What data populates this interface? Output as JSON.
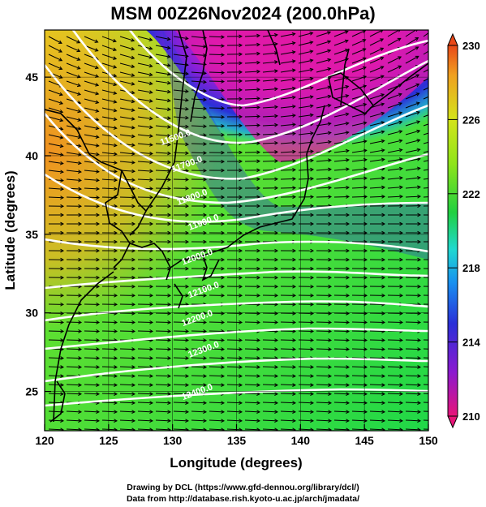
{
  "title": "MSM 00Z26Nov2024 (200.0hPa)",
  "x_axis": {
    "label": "Longitude (degrees)",
    "ticks": [
      "120",
      "125",
      "130",
      "135",
      "140",
      "145",
      "150"
    ],
    "range": [
      120,
      150
    ]
  },
  "y_axis": {
    "label": "Latitude  (degrees)",
    "ticks": [
      "25",
      "30",
      "35",
      "40",
      "45"
    ],
    "range": [
      22.5,
      48
    ]
  },
  "colorbar": {
    "ticks": [
      "230",
      "226",
      "222",
      "218",
      "214",
      "210"
    ],
    "range": [
      210,
      230
    ],
    "colors": [
      "#e81478",
      "#8a1ad0",
      "#2a30d8",
      "#1890f0",
      "#20d8d0",
      "#20d040",
      "#8ee41a",
      "#d4e41a",
      "#f0a020",
      "#e84818"
    ]
  },
  "contour_labels": [
    {
      "text": "11500.0",
      "lon": 130.3,
      "lat": 41.0
    },
    {
      "text": "11700.0",
      "lon": 131.2,
      "lat": 39.3
    },
    {
      "text": "11800.0",
      "lon": 131.6,
      "lat": 37.2
    },
    {
      "text": "11900.0",
      "lon": 132.5,
      "lat": 35.6
    },
    {
      "text": "12000.0",
      "lon": 132.0,
      "lat": 33.4
    },
    {
      "text": "12100.0",
      "lon": 132.5,
      "lat": 31.3
    },
    {
      "text": "12200.0",
      "lon": 132.0,
      "lat": 29.5
    },
    {
      "text": "12300.0",
      "lon": 132.5,
      "lat": 27.5
    },
    {
      "text": "12400.0",
      "lon": 132.0,
      "lat": 24.8
    }
  ],
  "footer": {
    "line1": "Drawing by DCL (https://www.gfd-dennou.org/library/dcl/)",
    "line2": "Data from http://database.rish.kyoto-u.ac.jp/arch/jmadata/"
  }
}
